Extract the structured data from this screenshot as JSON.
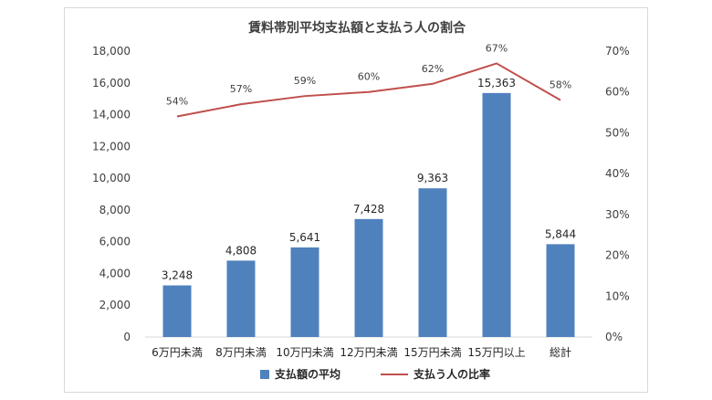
{
  "chart_data": {
    "type": "bar+line",
    "title": "賃料帯別平均支払額と支払う人の割合",
    "categories": [
      "6万円未満",
      "8万円未満",
      "10万円未満",
      "12万円未満",
      "15万円未満",
      "15万円以上",
      "総計"
    ],
    "series": [
      {
        "name": "支払額の平均",
        "type": "bar",
        "axis": "left",
        "color": "#4f81bd",
        "values": [
          3248,
          4808,
          5641,
          7428,
          9363,
          15363,
          5844
        ],
        "labels": [
          "3,248",
          "4,808",
          "5,641",
          "7,428",
          "9,363",
          "15,363",
          "5,844"
        ]
      },
      {
        "name": "支払う人の比率",
        "type": "line",
        "axis": "right",
        "color": "#c0504d",
        "values": [
          54,
          57,
          59,
          60,
          62,
          67,
          58
        ],
        "labels": [
          "54%",
          "57%",
          "59%",
          "60%",
          "62%",
          "67%",
          "58%"
        ]
      }
    ],
    "y_left": {
      "ylim": [
        0,
        18000
      ],
      "ticks": [
        0,
        2000,
        4000,
        6000,
        8000,
        10000,
        12000,
        14000,
        16000,
        18000
      ],
      "tick_labels": [
        "0",
        "2,000",
        "4,000",
        "6,000",
        "8,000",
        "10,000",
        "12,000",
        "14,000",
        "16,000",
        "18,000"
      ]
    },
    "y_right": {
      "ylim": [
        0,
        70
      ],
      "ticks": [
        0,
        10,
        20,
        30,
        40,
        50,
        60,
        70
      ],
      "tick_labels": [
        "0%",
        "10%",
        "20%",
        "30%",
        "40%",
        "50%",
        "60%",
        "70%"
      ]
    },
    "legend": {
      "position": "bottom"
    },
    "grid": false
  }
}
